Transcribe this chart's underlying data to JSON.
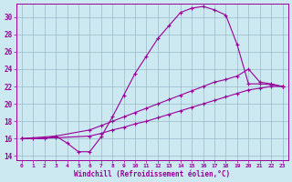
{
  "xlabel": "Windchill (Refroidissement éolien,°C)",
  "bg_color": "#cce8f0",
  "line_color": "#990099",
  "grid_color": "#99bbcc",
  "xlim": [
    -0.5,
    23.5
  ],
  "ylim": [
    13.5,
    31.5
  ],
  "xticks": [
    0,
    1,
    2,
    3,
    4,
    5,
    6,
    7,
    8,
    9,
    10,
    11,
    12,
    13,
    14,
    15,
    16,
    17,
    18,
    19,
    20,
    21,
    22,
    23
  ],
  "yticks": [
    14,
    16,
    18,
    20,
    22,
    24,
    26,
    28,
    30
  ],
  "curve1_x": [
    0,
    1,
    2,
    3,
    4,
    5,
    6,
    7,
    8,
    9,
    10,
    11,
    12,
    13,
    14,
    15,
    16,
    17,
    18,
    19,
    20,
    21,
    22,
    23
  ],
  "curve1_y": [
    16.0,
    16.0,
    16.0,
    16.3,
    15.5,
    14.5,
    14.5,
    16.2,
    18.5,
    21.0,
    23.5,
    25.5,
    27.5,
    29.0,
    30.5,
    31.0,
    31.2,
    30.8,
    30.2,
    26.8,
    22.3,
    22.3,
    22.2,
    22.0
  ],
  "curve2_x": [
    0,
    3,
    6,
    7,
    8,
    9,
    10,
    11,
    12,
    13,
    14,
    15,
    16,
    17,
    18,
    19,
    20,
    21,
    22,
    23
  ],
  "curve2_y": [
    16.0,
    16.3,
    17.0,
    17.5,
    18.0,
    18.5,
    19.0,
    19.5,
    20.0,
    20.5,
    21.0,
    21.5,
    22.0,
    22.5,
    22.8,
    23.2,
    24.0,
    22.5,
    22.3,
    22.0
  ],
  "curve3_x": [
    0,
    3,
    6,
    7,
    8,
    9,
    10,
    11,
    12,
    13,
    14,
    15,
    16,
    17,
    18,
    19,
    20,
    21,
    22,
    23
  ],
  "curve3_y": [
    16.0,
    16.1,
    16.3,
    16.6,
    17.0,
    17.3,
    17.7,
    18.0,
    18.4,
    18.8,
    19.2,
    19.6,
    20.0,
    20.4,
    20.8,
    21.2,
    21.6,
    21.8,
    22.0,
    22.0
  ]
}
